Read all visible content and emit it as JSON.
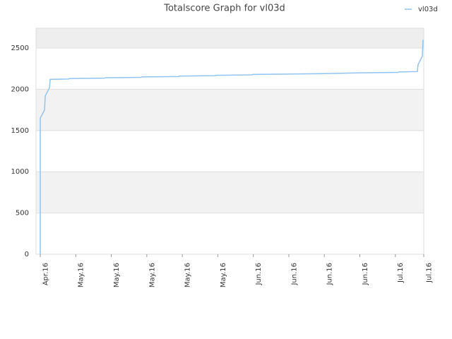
{
  "chart_data": {
    "type": "line",
    "title": "Totalscore Graph for vl03d",
    "series": [
      {
        "name": "vl03d",
        "color": "#90c4f0",
        "x": [
          0,
          0,
          0.12,
          0.14,
          0.26,
          0.28,
          0.8,
          0.82,
          1.81,
          1.83,
          2.84,
          2.86,
          3.9,
          3.92,
          4.93,
          4.95,
          5.96,
          5.98,
          7.0,
          8.01,
          9.05,
          10.08,
          10.1,
          10.62,
          10.64,
          10.76,
          10.78
        ],
        "values": [
          0,
          1650,
          1750,
          1920,
          2020,
          2120,
          2125,
          2130,
          2135,
          2140,
          2145,
          2150,
          2155,
          2160,
          2165,
          2170,
          2175,
          2180,
          2185,
          2190,
          2200,
          2205,
          2210,
          2215,
          2300,
          2400,
          2600
        ]
      }
    ],
    "xlim": [
      -0.12,
      10.8
    ],
    "xticks": [
      {
        "value": 0,
        "label": "Apr.16"
      },
      {
        "value": 1,
        "label": "May.16"
      },
      {
        "value": 2,
        "label": "May.16"
      },
      {
        "value": 3,
        "label": "May.16"
      },
      {
        "value": 4,
        "label": "May.16"
      },
      {
        "value": 5,
        "label": "May.16"
      },
      {
        "value": 6,
        "label": "Jun.16"
      },
      {
        "value": 7,
        "label": "Jun.16"
      },
      {
        "value": 8,
        "label": "Jun.16"
      },
      {
        "value": 9,
        "label": "Jun.16"
      },
      {
        "value": 10,
        "label": "Jul.16"
      },
      {
        "value": 10.8,
        "label": "Jul.16"
      }
    ],
    "ylim": [
      0,
      2740
    ],
    "yticks": [
      0,
      500,
      1000,
      1500,
      2000,
      2500
    ],
    "grid": true,
    "legend": "top-right"
  }
}
